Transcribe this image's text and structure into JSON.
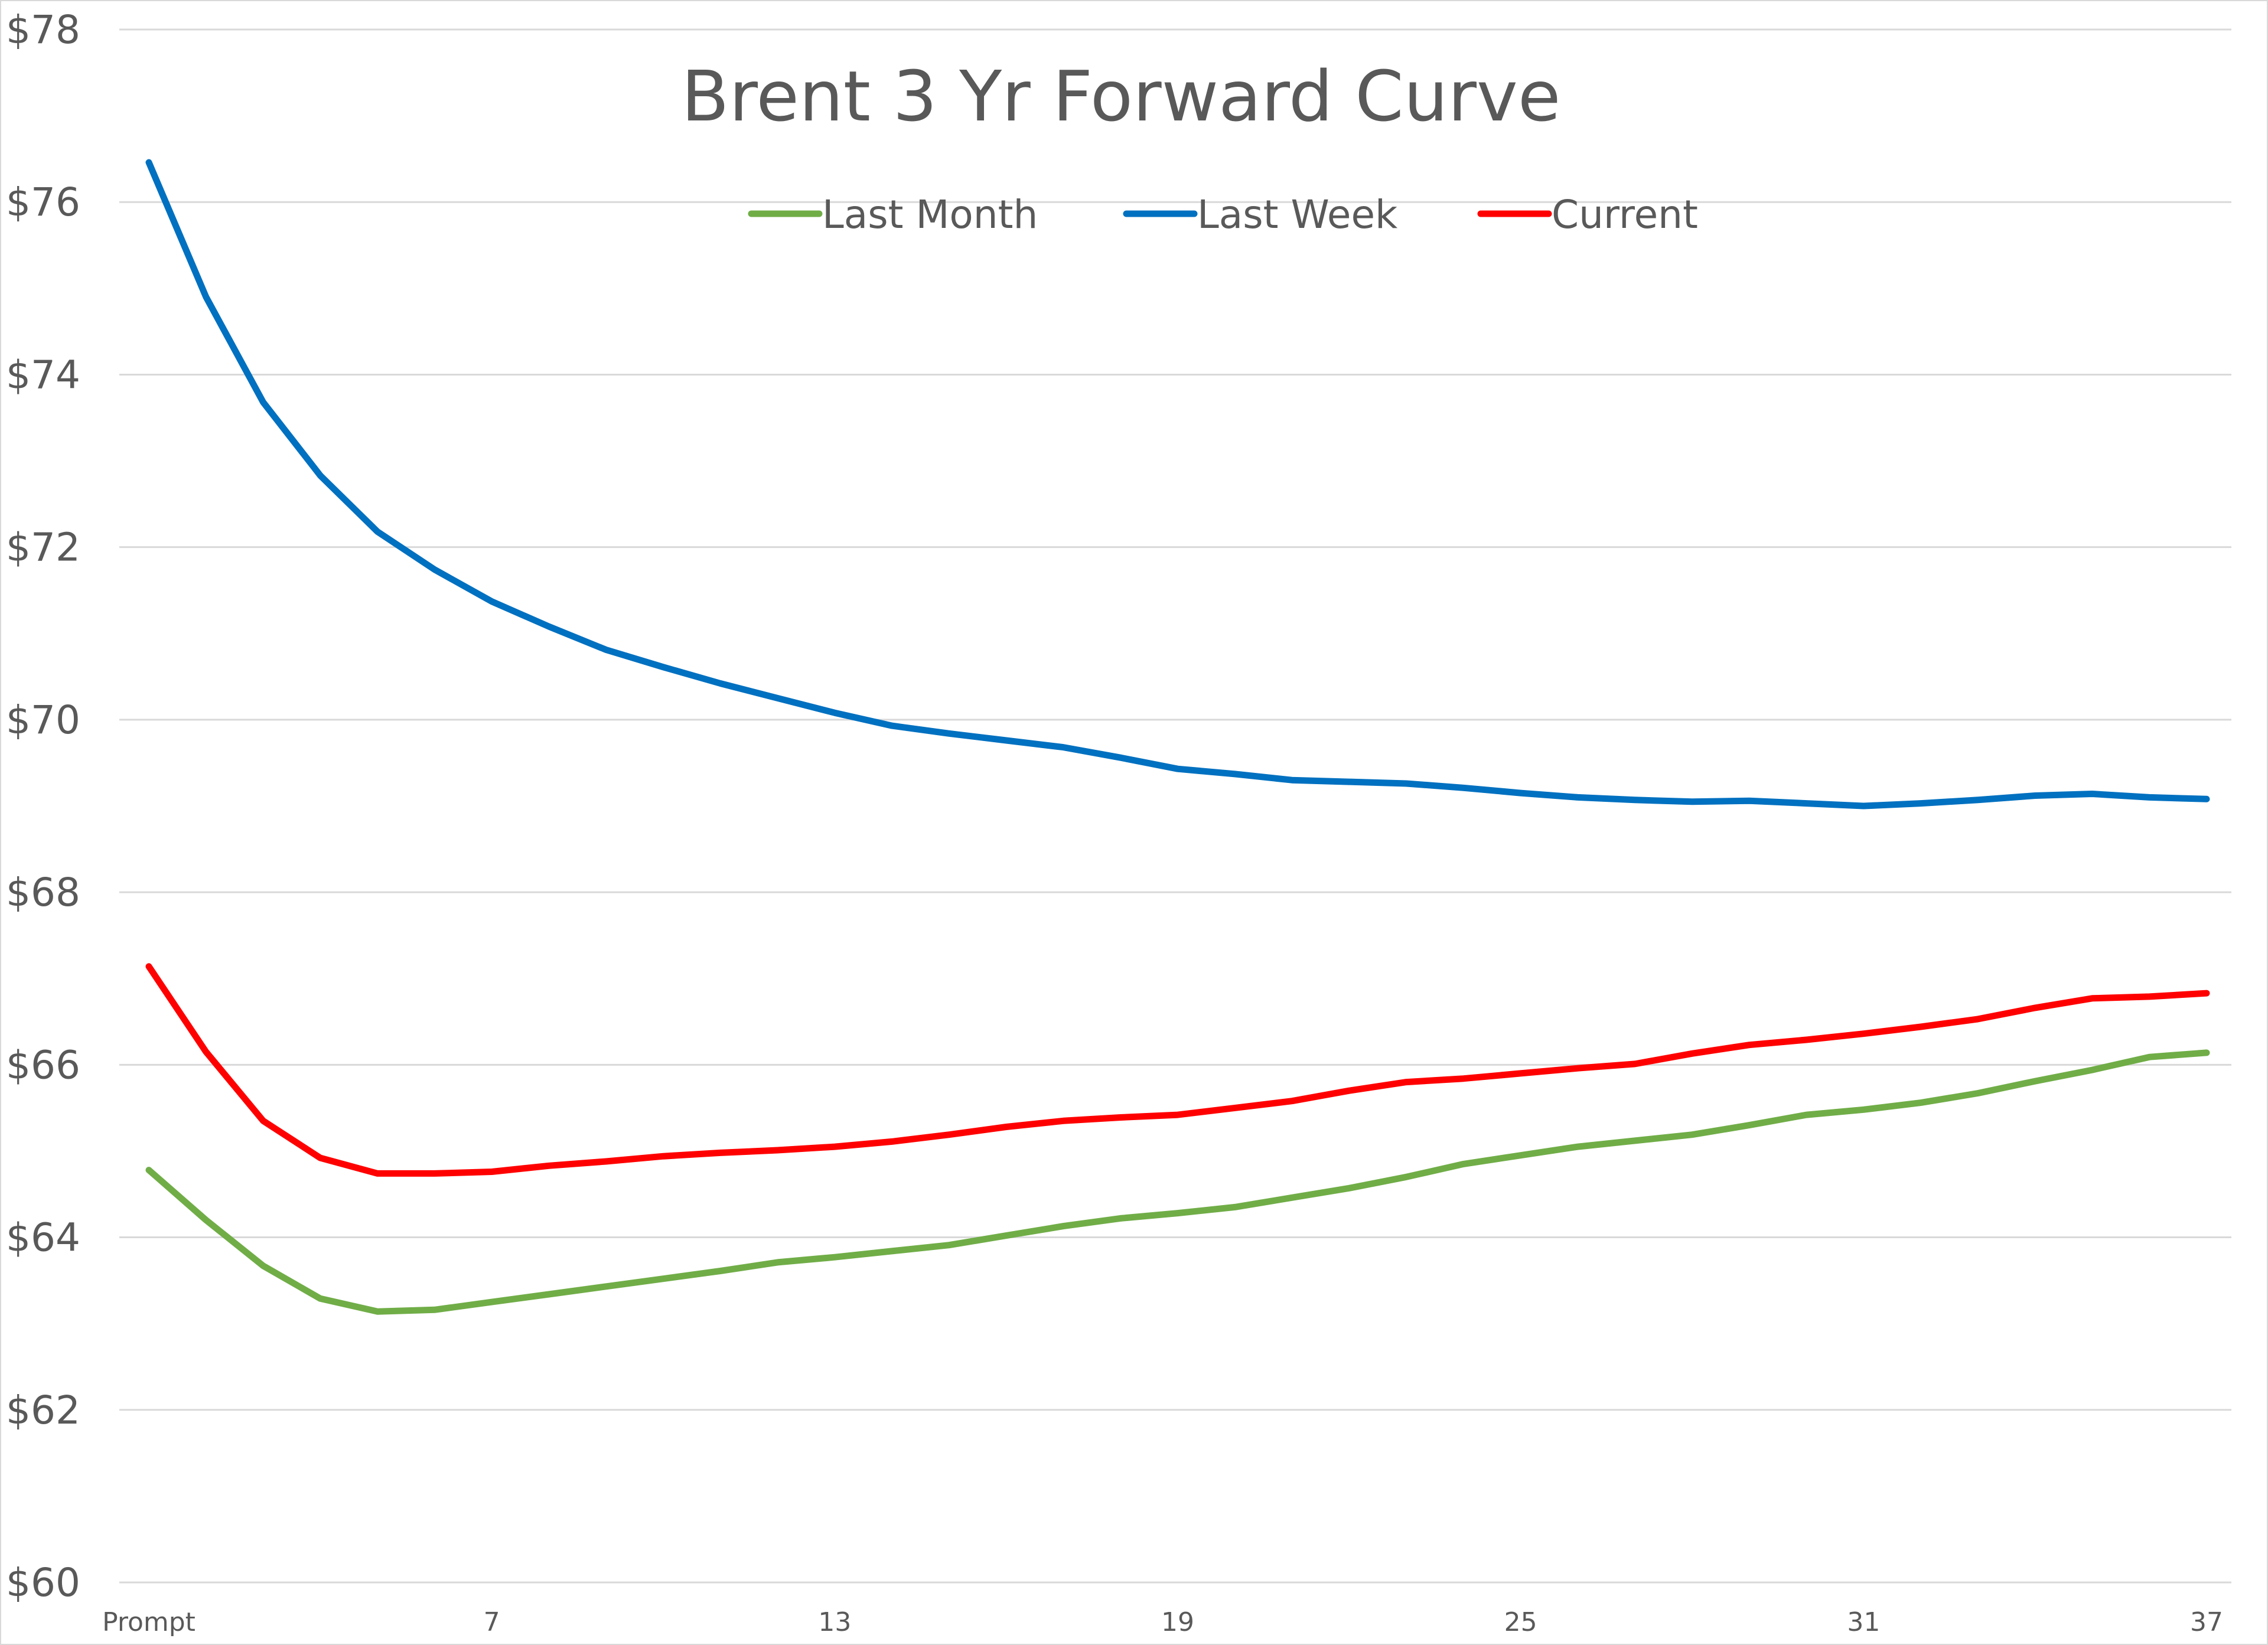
{
  "chart_data": {
    "type": "line",
    "title": "Brent 3 Yr Forward Curve",
    "xlabel": "",
    "ylabel": "",
    "x": [
      1,
      2,
      3,
      4,
      5,
      6,
      7,
      8,
      9,
      10,
      11,
      12,
      13,
      14,
      15,
      16,
      17,
      18,
      19,
      20,
      21,
      22,
      23,
      24,
      25,
      26,
      27,
      28,
      29,
      30,
      31,
      32,
      33,
      34,
      35,
      36,
      37
    ],
    "x_tick_labels": [
      {
        "x": 1,
        "label": "Prompt"
      },
      {
        "x": 7,
        "label": "7"
      },
      {
        "x": 13,
        "label": "13"
      },
      {
        "x": 19,
        "label": "19"
      },
      {
        "x": 25,
        "label": "25"
      },
      {
        "x": 31,
        "label": "31"
      },
      {
        "x": 37,
        "label": "37"
      }
    ],
    "ylim": [
      60,
      78
    ],
    "y_ticks": [
      60,
      62,
      64,
      66,
      68,
      70,
      72,
      74,
      76,
      78
    ],
    "y_tick_labels": [
      "$60",
      "$62",
      "$64",
      "$66",
      "$68",
      "$70",
      "$72",
      "$74",
      "$76",
      "$78"
    ],
    "grid": true,
    "legend_position": "top-center",
    "series": [
      {
        "name": "Last Month",
        "color": "#70ad47",
        "values": [
          64.78,
          64.2,
          63.67,
          63.29,
          63.14,
          63.16,
          63.25,
          63.34,
          63.43,
          63.52,
          63.61,
          63.71,
          63.77,
          63.84,
          63.91,
          64.02,
          64.13,
          64.22,
          64.28,
          64.35,
          64.46,
          64.57,
          64.7,
          64.85,
          64.95,
          65.05,
          65.12,
          65.19,
          65.3,
          65.42,
          65.48,
          65.56,
          65.67,
          65.81,
          65.94,
          66.09,
          66.14
        ]
      },
      {
        "name": "Last Week",
        "color": "#0070c0",
        "values": [
          76.46,
          74.9,
          73.68,
          72.83,
          72.18,
          71.74,
          71.37,
          71.08,
          70.81,
          70.61,
          70.42,
          70.25,
          70.08,
          69.93,
          69.84,
          69.76,
          69.68,
          69.56,
          69.43,
          69.37,
          69.3,
          69.28,
          69.26,
          69.21,
          69.15,
          69.1,
          69.07,
          69.05,
          69.06,
          69.03,
          69.0,
          69.03,
          69.07,
          69.12,
          69.14,
          69.1,
          69.08
        ]
      },
      {
        "name": "Current",
        "color": "#ff0000",
        "values": [
          67.14,
          66.15,
          65.35,
          64.92,
          64.74,
          64.74,
          64.76,
          64.83,
          64.88,
          64.94,
          64.98,
          65.01,
          65.05,
          65.11,
          65.19,
          65.28,
          65.35,
          65.39,
          65.42,
          65.5,
          65.58,
          65.7,
          65.8,
          65.84,
          65.9,
          65.96,
          66.01,
          66.13,
          66.23,
          66.29,
          66.36,
          66.44,
          66.53,
          66.66,
          66.77,
          66.79,
          66.83
        ]
      }
    ]
  }
}
